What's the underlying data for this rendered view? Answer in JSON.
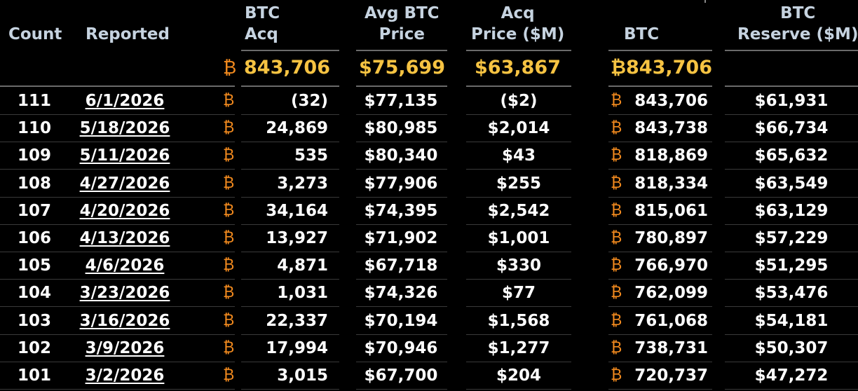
{
  "headers": {
    "count": "Count",
    "reported": "Reported",
    "btc_acq": "BTC\nAcq",
    "avg_price": "Avg BTC\nPrice",
    "acq_price": "Acq\nPrice ($M)",
    "btc": "BTC",
    "reserve": "BTC\nReserve ($M)"
  },
  "symbol": "₿",
  "totals": {
    "btc_acq": "843,706",
    "avg_price": "$75,699",
    "acq_price": "$63,867",
    "btc": "₿843,706"
  },
  "rows": [
    {
      "count": "111",
      "date": "6/1/2026",
      "acq": "(32)",
      "avg": "$77,135",
      "price": "($2)",
      "btc": "843,706",
      "reserve": "$61,931"
    },
    {
      "count": "110",
      "date": "5/18/2026",
      "acq": "24,869",
      "avg": "$80,985",
      "price": "$2,014",
      "btc": "843,738",
      "reserve": "$66,734"
    },
    {
      "count": "109",
      "date": "5/11/2026",
      "acq": "535",
      "avg": "$80,340",
      "price": "$43",
      "btc": "818,869",
      "reserve": "$65,632"
    },
    {
      "count": "108",
      "date": "4/27/2026",
      "acq": "3,273",
      "avg": "$77,906",
      "price": "$255",
      "btc": "818,334",
      "reserve": "$63,549"
    },
    {
      "count": "107",
      "date": "4/20/2026",
      "acq": "34,164",
      "avg": "$74,395",
      "price": "$2,542",
      "btc": "815,061",
      "reserve": "$63,129"
    },
    {
      "count": "106",
      "date": "4/13/2026",
      "acq": "13,927",
      "avg": "$71,902",
      "price": "$1,001",
      "btc": "780,897",
      "reserve": "$57,229"
    },
    {
      "count": "105",
      "date": "4/6/2026",
      "acq": "4,871",
      "avg": "$67,718",
      "price": "$330",
      "btc": "766,970",
      "reserve": "$51,295"
    },
    {
      "count": "104",
      "date": "3/23/2026",
      "acq": "1,031",
      "avg": "$74,326",
      "price": "$77",
      "btc": "762,099",
      "reserve": "$53,476"
    },
    {
      "count": "103",
      "date": "3/16/2026",
      "acq": "22,337",
      "avg": "$70,194",
      "price": "$1,568",
      "btc": "761,068",
      "reserve": "$54,181"
    },
    {
      "count": "102",
      "date": "3/9/2026",
      "acq": "17,994",
      "avg": "$70,946",
      "price": "$1,277",
      "btc": "738,731",
      "reserve": "$50,307"
    },
    {
      "count": "101",
      "date": "3/2/2026",
      "acq": "3,015",
      "avg": "$67,700",
      "price": "$204",
      "btc": "720,737",
      "reserve": "$47,272"
    }
  ]
}
